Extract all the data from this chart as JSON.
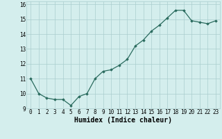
{
  "x": [
    0,
    1,
    2,
    3,
    4,
    5,
    6,
    7,
    8,
    9,
    10,
    11,
    12,
    13,
    14,
    15,
    16,
    17,
    18,
    19,
    20,
    21,
    22,
    23
  ],
  "y": [
    11.0,
    10.0,
    9.7,
    9.6,
    9.6,
    9.2,
    9.8,
    10.0,
    11.0,
    11.5,
    11.6,
    11.9,
    12.3,
    13.2,
    13.6,
    14.2,
    14.6,
    15.1,
    15.6,
    15.6,
    14.9,
    14.8,
    14.7,
    14.9
  ],
  "line_color": "#2a6b5e",
  "marker": "D",
  "marker_size": 1.8,
  "bg_color": "#d4eeed",
  "grid_color": "#aacece",
  "xlabel": "Humidex (Indice chaleur)",
  "xlabel_fontsize": 7,
  "ylim": [
    9.0,
    16.2
  ],
  "xlim": [
    -0.5,
    23.5
  ],
  "yticks": [
    9,
    10,
    11,
    12,
    13,
    14,
    15,
    16
  ],
  "xticks": [
    0,
    1,
    2,
    3,
    4,
    5,
    6,
    7,
    8,
    9,
    10,
    11,
    12,
    13,
    14,
    15,
    16,
    17,
    18,
    19,
    20,
    21,
    22,
    23
  ],
  "tick_fontsize": 5.5,
  "linewidth": 0.9
}
